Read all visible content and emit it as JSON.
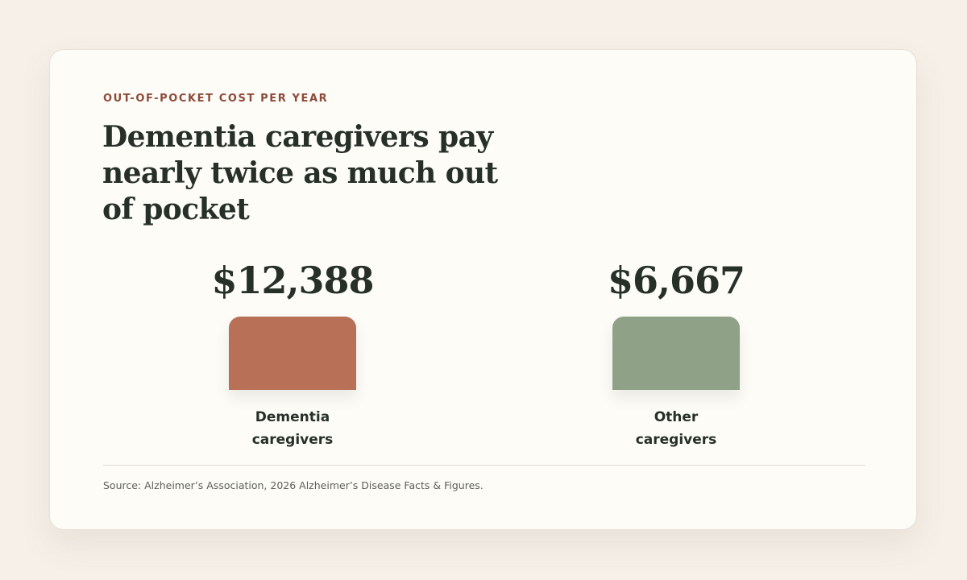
{
  "card": {
    "eyebrow": "OUT-OF-POCKET COST PER YEAR",
    "title": "Dementia caregivers pay nearly twice as much out of pocket",
    "source": "Source: Alzheimer’s Association, 2026 Alzheimer’s Disease Facts & Figures."
  },
  "colors": {
    "background": "#f6f0e8",
    "card": "#fdfcf7",
    "eyebrow": "#8e4a3a",
    "text": "#263029"
  },
  "chart_data": {
    "type": "bar",
    "title": "Dementia caregivers pay nearly twice as much out of pocket",
    "categories": [
      "Dementia caregivers",
      "Other caregivers"
    ],
    "values": [
      12388,
      6667
    ],
    "value_labels": [
      "$12,388",
      "$6,667"
    ],
    "category_lines": [
      [
        "Dementia",
        "caregivers"
      ],
      [
        "Other",
        "caregivers"
      ]
    ],
    "colors": [
      "#b87056",
      "#8fa187"
    ],
    "xlabel": "",
    "ylabel": "",
    "grid": false,
    "legend": "none"
  }
}
